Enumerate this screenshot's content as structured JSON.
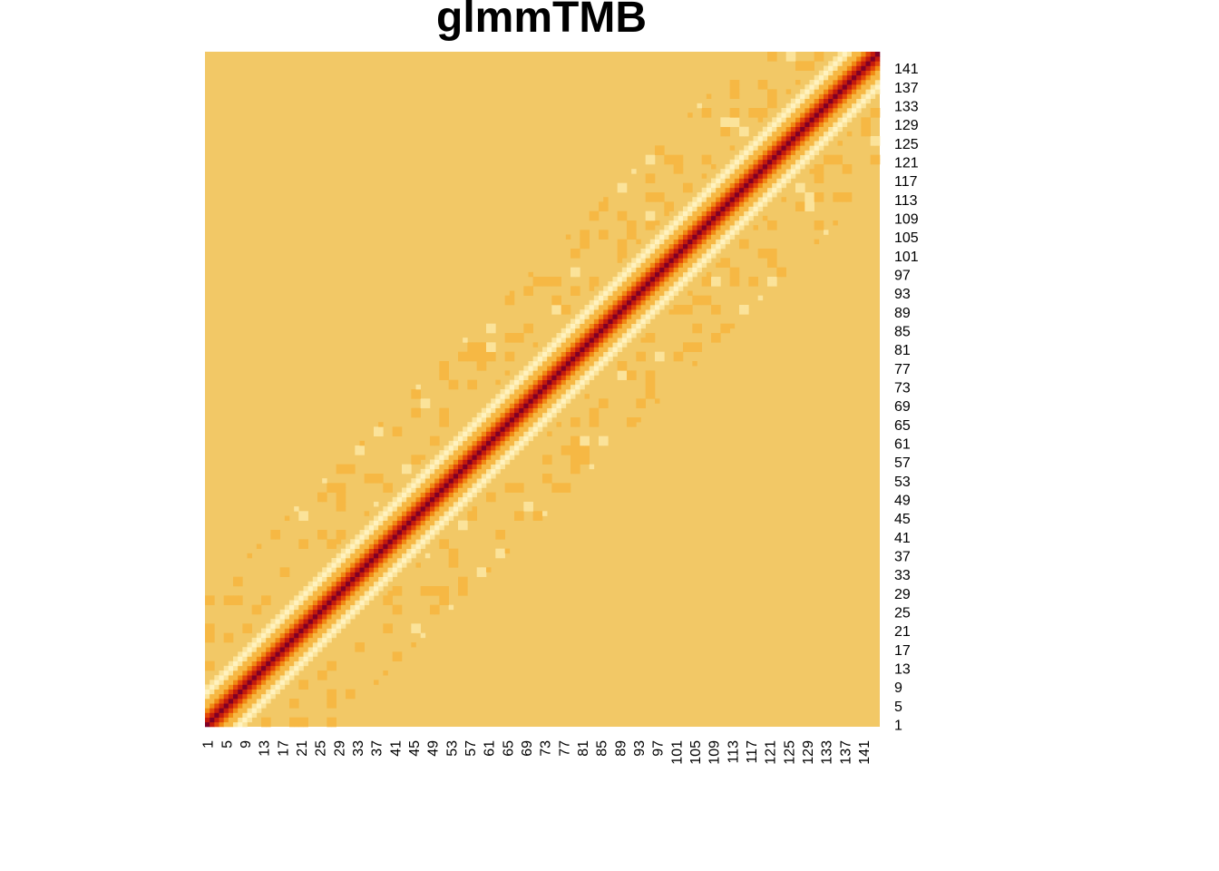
{
  "chart_data": {
    "type": "heatmap",
    "title": "glmmTMB",
    "n": 144,
    "x_labels": [
      "1",
      "5",
      "9",
      "13",
      "17",
      "21",
      "25",
      "29",
      "33",
      "37",
      "41",
      "45",
      "49",
      "53",
      "57",
      "61",
      "65",
      "69",
      "73",
      "77",
      "81",
      "85",
      "89",
      "93",
      "97",
      "101",
      "105",
      "109",
      "113",
      "117",
      "121",
      "125",
      "129",
      "133",
      "137",
      "141"
    ],
    "y_labels": [
      "1",
      "5",
      "9",
      "13",
      "17",
      "21",
      "25",
      "29",
      "33",
      "37",
      "41",
      "45",
      "49",
      "53",
      "57",
      "61",
      "65",
      "69",
      "73",
      "77",
      "81",
      "85",
      "89",
      "93",
      "97",
      "101",
      "105",
      "109",
      "113",
      "117",
      "121",
      "125",
      "129",
      "133",
      "137",
      "141"
    ],
    "x_axis_position": "bottom",
    "y_axis_position": "right",
    "x_label_rotation": "vertical",
    "palette": [
      "#800026",
      "#c41a0c",
      "#e2480a",
      "#f08a12",
      "#f6b844",
      "#f2c866",
      "#fbe39a",
      "#fff2bf"
    ],
    "background_color": "#f2c866",
    "structure": "banded correlation matrix: strongest values on the diagonal (dark red), fading to orange along a narrow band, a pale yellow ring of negative values beside the band, scattered weak orange blocks elsewhere",
    "diagonal_value": 1.0,
    "band_decay": [
      1.0,
      0.82,
      0.62,
      0.42,
      0.24,
      0.08,
      -0.06,
      -0.12,
      -0.08,
      -0.02,
      0.0
    ]
  }
}
